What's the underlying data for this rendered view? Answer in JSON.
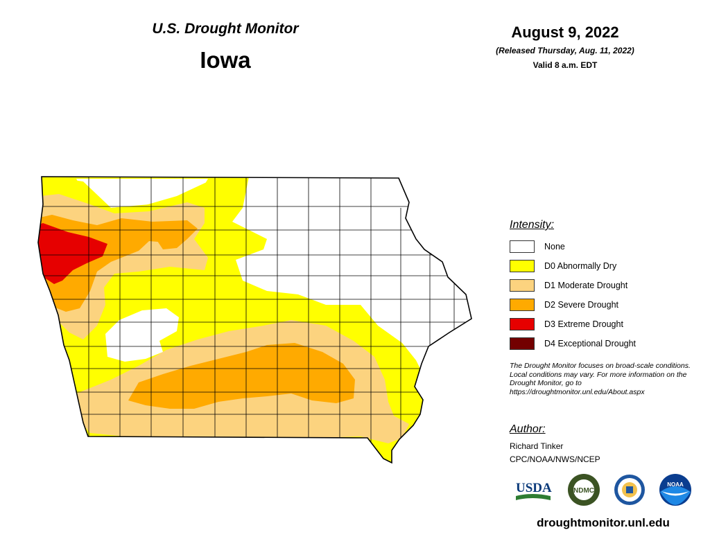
{
  "header": {
    "title": "U.S. Drought Monitor",
    "state": "Iowa",
    "date": "August 9, 2022",
    "released": "(Released Thursday, Aug. 11, 2022)",
    "valid": "Valid 8 a.m. EDT"
  },
  "legend": {
    "title": "Intensity:",
    "items": [
      {
        "label": "None",
        "color": "#ffffff"
      },
      {
        "label": "D0 Abnormally Dry",
        "color": "#ffff00"
      },
      {
        "label": "D1 Moderate Drought",
        "color": "#fcd37f"
      },
      {
        "label": "D2 Severe Drought",
        "color": "#ffaa00"
      },
      {
        "label": "D3 Extreme Drought",
        "color": "#e60000"
      },
      {
        "label": "D4 Exceptional Drought",
        "color": "#730000"
      }
    ]
  },
  "note": "The Drought Monitor focuses on broad-scale conditions. Local conditions may vary. For more information on the Drought Monitor, go to https://droughtmonitor.unl.edu/About.aspx",
  "author": {
    "title": "Author:",
    "name": "Richard Tinker",
    "org": "CPC/NOAA/NWS/NCEP"
  },
  "logos": [
    {
      "name": "usda-logo",
      "text": "USDA"
    },
    {
      "name": "ndmc-logo",
      "text": "NDMC"
    },
    {
      "name": "commerce-seal",
      "text": ""
    },
    {
      "name": "noaa-logo",
      "text": "NOAA"
    }
  ],
  "website": "droughtmonitor.unl.edu"
}
